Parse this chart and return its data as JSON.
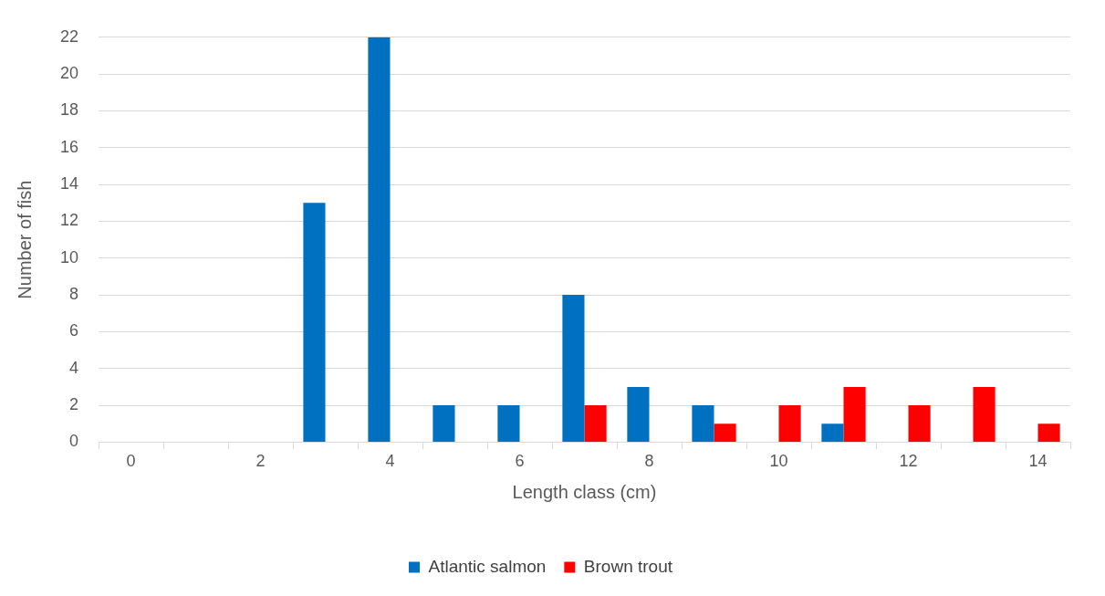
{
  "chart_data": {
    "type": "bar",
    "xlabel": "Length class (cm)",
    "ylabel": "Number of fish",
    "categories": [
      "0",
      null,
      "2",
      null,
      "4",
      null,
      "6",
      null,
      "8",
      null,
      "10",
      null,
      "12",
      null,
      "14"
    ],
    "series": [
      {
        "name": "Atlantic salmon",
        "color": "#0070c0",
        "values": [
          0,
          0,
          0,
          13,
          22,
          2,
          2,
          8,
          3,
          2,
          0,
          1,
          0,
          0,
          0
        ]
      },
      {
        "name": "Brown trout",
        "color": "#ff0000",
        "values": [
          0,
          0,
          0,
          0,
          0,
          0,
          0,
          2,
          0,
          1,
          2,
          3,
          2,
          3,
          1
        ]
      }
    ],
    "ylim": [
      0,
      22
    ],
    "yticks": [
      0,
      2,
      4,
      6,
      8,
      10,
      12,
      14,
      16,
      18,
      20,
      22
    ],
    "grid": "y",
    "legend": "bottom"
  }
}
